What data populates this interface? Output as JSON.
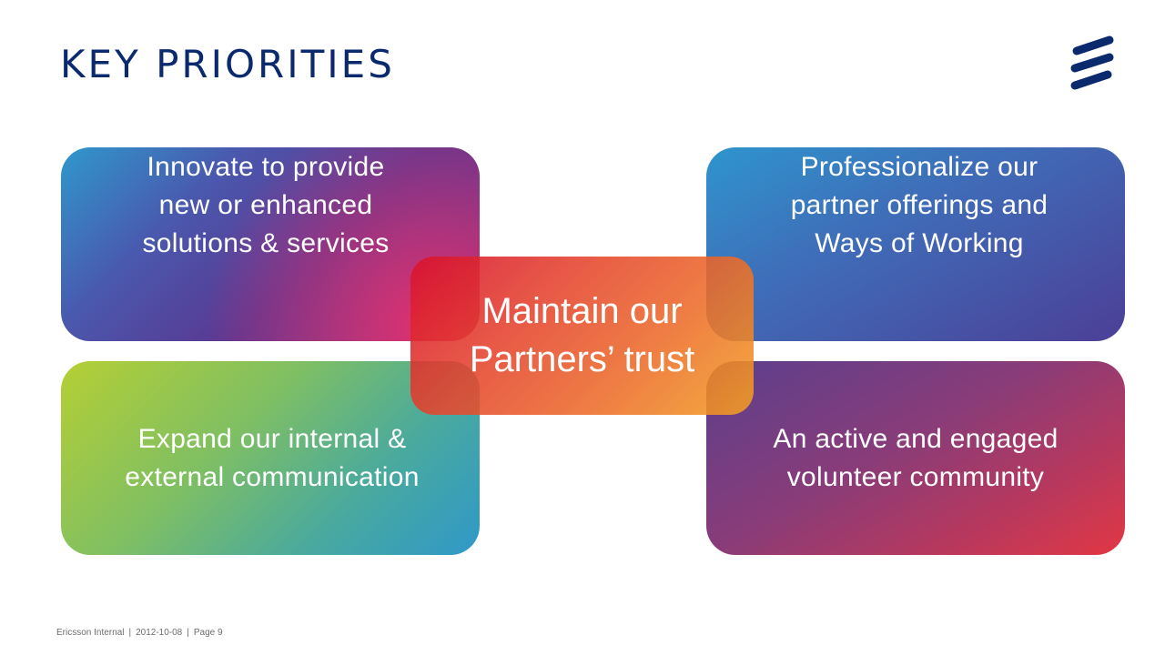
{
  "slide": {
    "title": "KEY PRIORITIES",
    "logo_icon": "ericsson-logo-icon",
    "brand_color": "#0b2a6e"
  },
  "boxes": {
    "top_left": {
      "text": "Innovate to provide\nnew or enhanced\nsolutions & services"
    },
    "top_right": {
      "text": "Professionalize our\npartner offerings and\nWays of Working"
    },
    "bottom_left": {
      "text": "Expand our internal &\nexternal communication"
    },
    "bottom_right": {
      "text": "An active and engaged\nvolunteer community"
    }
  },
  "center": {
    "text": "Maintain our\nPartners’ trust"
  },
  "footer": {
    "classification": "Ericsson Internal",
    "date": "2012-10-08",
    "page": "Page 9",
    "separator": "|"
  }
}
